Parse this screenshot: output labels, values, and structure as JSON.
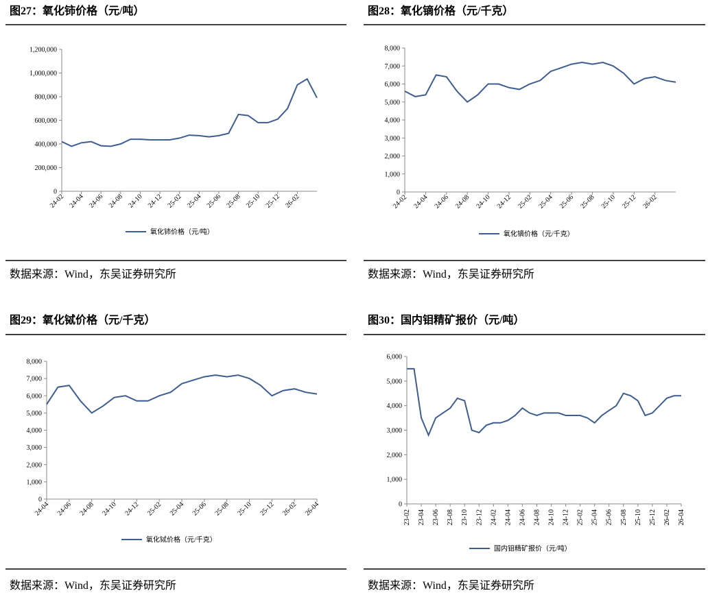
{
  "chart_data": [
    {
      "type": "line",
      "title": "图27：氧化铈价格（元/吨）",
      "source": "数据来源：Wind，东吴证券研究所",
      "x": [
        "24-02",
        "24-03",
        "24-04",
        "24-05",
        "24-06",
        "24-07",
        "24-08",
        "24-09",
        "24-10",
        "24-11",
        "24-12",
        "25-01",
        "25-02",
        "25-03",
        "25-04",
        "25-05",
        "25-06",
        "25-07",
        "25-08",
        "25-09",
        "25-10",
        "25-11",
        "25-12",
        "26-01",
        "26-02",
        "26-03",
        "26-04"
      ],
      "xticks": [
        "24-02",
        "24-04",
        "24-06",
        "24-08",
        "24-10",
        "24-12",
        "25-02",
        "25-04",
        "25-06",
        "25-08",
        "25-10",
        "25-12",
        "26-02"
      ],
      "series": [
        {
          "name": "氧化铈价格（元/吨）",
          "color": "#3d5c8f",
          "values": [
            420000,
            380000,
            410000,
            420000,
            385000,
            380000,
            400000,
            440000,
            440000,
            435000,
            435000,
            435000,
            450000,
            475000,
            470000,
            460000,
            470000,
            490000,
            650000,
            640000,
            580000,
            580000,
            610000,
            700000,
            900000,
            950000,
            790000
          ]
        }
      ],
      "ylim": [
        0,
        1200000
      ],
      "yticks": [
        0,
        {
          "value": 200000,
          "label": "200,000"
        },
        {
          "value": 400000,
          "label": "400,000"
        },
        {
          "value": 600000,
          "label": "600,000"
        },
        {
          "value": 800000,
          "label": "800,000"
        },
        {
          "value": 1000000,
          "label": "1,000,000"
        },
        {
          "value": 1200000,
          "label": "1,200,000"
        }
      ]
    },
    {
      "type": "line",
      "title": "图28：氧化镝价格（元/千克）",
      "source": "数据来源：Wind，东吴证券研究所",
      "x": [
        "24-02",
        "24-03",
        "24-04",
        "24-05",
        "24-06",
        "24-07",
        "24-08",
        "24-09",
        "24-10",
        "24-11",
        "24-12",
        "25-01",
        "25-02",
        "25-03",
        "25-04",
        "25-05",
        "25-06",
        "25-07",
        "25-08",
        "25-09",
        "25-10",
        "25-11",
        "25-12",
        "26-01",
        "26-02",
        "26-03",
        "26-04"
      ],
      "xticks": [
        "24-02",
        "24-04",
        "24-06",
        "24-08",
        "24-10",
        "24-12",
        "25-02",
        "25-04",
        "25-06",
        "25-08",
        "25-10",
        "25-12",
        "26-02"
      ],
      "series": [
        {
          "name": "氧化镝价格（元/千克）",
          "color": "#3d5c8f",
          "values": [
            5600,
            5300,
            5400,
            6500,
            6400,
            5600,
            5000,
            5400,
            6000,
            6000,
            5800,
            5700,
            6000,
            6200,
            6700,
            6900,
            7100,
            7200,
            7100,
            7200,
            7000,
            6600,
            6000,
            6300,
            6400,
            6200,
            6100
          ]
        }
      ],
      "ylim": [
        0,
        8000
      ],
      "yticks": [
        0,
        {
          "value": 1000,
          "label": "1,000"
        },
        {
          "value": 2000,
          "label": "2,000"
        },
        {
          "value": 3000,
          "label": "3,000"
        },
        {
          "value": 4000,
          "label": "4,000"
        },
        {
          "value": 5000,
          "label": "5,000"
        },
        {
          "value": 6000,
          "label": "6,000"
        },
        {
          "value": 7000,
          "label": "7,000"
        },
        {
          "value": 8000,
          "label": "8,000"
        }
      ]
    },
    {
      "type": "line",
      "title": "图29：氧化铽价格（元/千克）",
      "source": "数据来源：Wind，东吴证券研究所",
      "x": [
        "24-04",
        "24-05",
        "24-06",
        "24-07",
        "24-08",
        "24-09",
        "24-10",
        "24-11",
        "24-12",
        "25-01",
        "25-02",
        "25-03",
        "25-04",
        "25-05",
        "25-06",
        "25-07",
        "25-08",
        "25-09",
        "25-10",
        "25-11",
        "25-12",
        "26-01",
        "26-02",
        "26-03",
        "26-04"
      ],
      "xticks": [
        "24-04",
        "24-06",
        "24-08",
        "24-10",
        "24-12",
        "25-02",
        "25-04",
        "25-06",
        "25-08",
        "25-10",
        "25-12",
        "26-02",
        "26-04"
      ],
      "series": [
        {
          "name": "氧化铽价格（元/千克）",
          "color": "#3d5c8f",
          "values": [
            5500,
            6500,
            6600,
            5700,
            5000,
            5400,
            5900,
            6000,
            5700,
            5700,
            6000,
            6200,
            6700,
            6900,
            7100,
            7200,
            7100,
            7200,
            7000,
            6600,
            6000,
            6300,
            6400,
            6200,
            6100
          ]
        }
      ],
      "ylim": [
        0,
        8000
      ],
      "yticks": [
        0,
        {
          "value": 1000,
          "label": "1,000"
        },
        {
          "value": 2000,
          "label": "2,000"
        },
        {
          "value": 3000,
          "label": "3,000"
        },
        {
          "value": 4000,
          "label": "4,000"
        },
        {
          "value": 5000,
          "label": "5,000"
        },
        {
          "value": 6000,
          "label": "6,000"
        },
        {
          "value": 7000,
          "label": "7,000"
        },
        {
          "value": 8000,
          "label": "8,000"
        }
      ]
    },
    {
      "type": "line",
      "title": "图30：国内钼精矿报价（元/吨）",
      "source": "数据来源：Wind，东吴证券研究所",
      "x": [
        "23-02",
        "23-03",
        "23-04",
        "23-05",
        "23-06",
        "23-07",
        "23-08",
        "23-09",
        "23-10",
        "23-11",
        "23-12",
        "24-01",
        "24-02",
        "24-03",
        "24-04",
        "24-05",
        "24-06",
        "24-07",
        "24-08",
        "24-09",
        "24-10",
        "24-11",
        "24-12",
        "25-01",
        "25-02",
        "25-03",
        "25-04",
        "25-05",
        "25-06",
        "25-07",
        "25-08",
        "25-09",
        "25-10",
        "25-11",
        "25-12",
        "26-01",
        "26-02",
        "26-03",
        "26-04"
      ],
      "xticks": [
        "23-02",
        "23-04",
        "23-06",
        "23-08",
        "23-10",
        "23-12",
        "24-02",
        "24-04",
        "24-06",
        "24-08",
        "24-10",
        "24-12",
        "25-02",
        "25-04",
        "25-06",
        "25-08",
        "25-10",
        "25-12",
        "26-02",
        "26-04"
      ],
      "series": [
        {
          "name": "国内钼精矿报价（元/吨）",
          "color": "#3d5c8f",
          "values": [
            5500,
            5500,
            3500,
            2800,
            3500,
            3700,
            3900,
            4300,
            4200,
            3000,
            2900,
            3200,
            3300,
            3300,
            3400,
            3600,
            3900,
            3700,
            3600,
            3700,
            3700,
            3700,
            3600,
            3600,
            3600,
            3500,
            3300,
            3600,
            3800,
            4000,
            4500,
            4400,
            4200,
            3600,
            3700,
            4000,
            4300,
            4400,
            4400
          ]
        }
      ],
      "ylim": [
        0,
        6000
      ],
      "yticks": [
        0,
        {
          "value": 1000,
          "label": "1,000"
        },
        {
          "value": 2000,
          "label": "2,000"
        },
        {
          "value": 3000,
          "label": "3,000"
        },
        {
          "value": 4000,
          "label": "4,000"
        },
        {
          "value": 5000,
          "label": "5,000"
        },
        {
          "value": 6000,
          "label": "6,000"
        }
      ]
    }
  ]
}
